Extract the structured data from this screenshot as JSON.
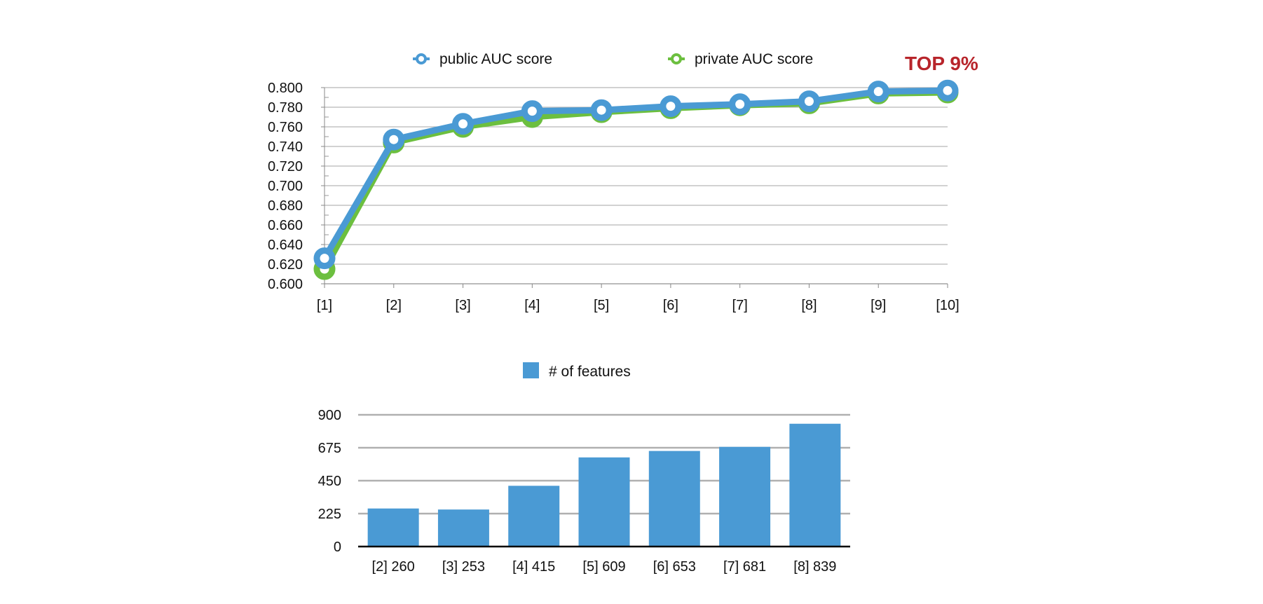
{
  "chart_data": [
    {
      "type": "line",
      "categories": [
        "[1]",
        "[2]",
        "[3]",
        "[4]",
        "[5]",
        "[6]",
        "[7]",
        "[8]",
        "[9]",
        "[10]"
      ],
      "series": [
        {
          "name": "private AUC score",
          "color": "#6cbf3f",
          "values": [
            0.615,
            0.744,
            0.76,
            0.77,
            0.775,
            0.779,
            0.782,
            0.784,
            0.794,
            0.795
          ]
        },
        {
          "name": "public AUC score",
          "color": "#4a9ad4",
          "values": [
            0.626,
            0.747,
            0.763,
            0.776,
            0.777,
            0.781,
            0.783,
            0.786,
            0.796,
            0.797
          ]
        }
      ],
      "ylim": [
        0.6,
        0.8
      ],
      "yticks": [
        "0.800",
        "0.780",
        "0.760",
        "0.740",
        "0.720",
        "0.700",
        "0.680",
        "0.660",
        "0.640",
        "0.620",
        "0.600"
      ],
      "legend_position": "top",
      "grid": true,
      "annotation": {
        "text": "TOP 9%",
        "color": "#b8252b"
      }
    },
    {
      "type": "bar",
      "categories": [
        "[2] 260",
        "[3] 253",
        "[4] 415",
        "[5] 609",
        "[6] 653",
        "[7] 681",
        "[8] 839"
      ],
      "series": [
        {
          "name": "# of features",
          "color": "#4a9ad4",
          "values": [
            260,
            253,
            415,
            609,
            653,
            681,
            839
          ]
        }
      ],
      "ylim": [
        0,
        900
      ],
      "yticks": [
        "900",
        "675",
        "450",
        "225",
        "0"
      ],
      "legend_position": "top",
      "grid": true
    }
  ]
}
